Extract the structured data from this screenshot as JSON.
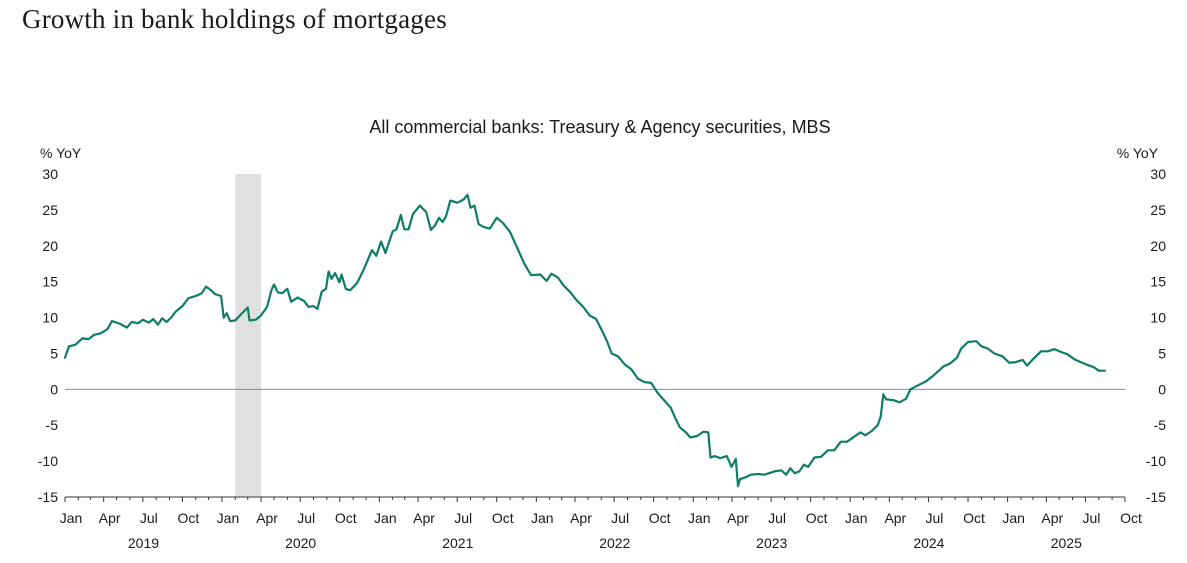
{
  "page_title": "Growth in bank holdings of mortgages",
  "colors": {
    "line": "#0e7c66",
    "recession_shade": "#e0e0e0",
    "zero_line": "#8c8c8c",
    "text": "#1a1a1a"
  },
  "chart_data": {
    "type": "line",
    "title": "All commercial banks:  Treasury & Agency securities, MBS",
    "ylabel_left": "% YoY",
    "ylabel_right": "% YoY",
    "ylim": [
      -15,
      30
    ],
    "yticks": [
      "30",
      "25",
      "20",
      "15",
      "10",
      "5",
      "0",
      "-5",
      "-10",
      "-15"
    ],
    "x_start": "2019-01",
    "x_end": "2025-10",
    "month_ticks": [
      "Jan",
      "Apr",
      "Jul",
      "Oct",
      "Jan",
      "Apr",
      "Jul",
      "Oct",
      "Jan",
      "Apr",
      "Jul",
      "Oct",
      "Jan",
      "Apr",
      "Jul",
      "Oct",
      "Jan",
      "Apr",
      "Jul",
      "Oct",
      "Jan",
      "Apr",
      "Jul",
      "Oct",
      "Jan",
      "Apr",
      "Jul",
      "Oct"
    ],
    "year_labels": [
      "2019",
      "2020",
      "2021",
      "2022",
      "2023",
      "2024",
      "2025"
    ],
    "recession_shading": [
      "2020-02",
      "2020-04"
    ],
    "grid": false,
    "legend": "none",
    "series": [
      {
        "values": [
          [
            "2019-01-01",
            4.4
          ],
          [
            "2019-01-10",
            6.0
          ],
          [
            "2019-01-25",
            6.2
          ],
          [
            "2019-02-10",
            7.1
          ],
          [
            "2019-02-25",
            7.0
          ],
          [
            "2019-03-10",
            7.6
          ],
          [
            "2019-03-25",
            7.8
          ],
          [
            "2019-04-10",
            8.4
          ],
          [
            "2019-04-20",
            9.5
          ],
          [
            "2019-05-10",
            9.1
          ],
          [
            "2019-05-25",
            8.6
          ],
          [
            "2019-06-05",
            9.4
          ],
          [
            "2019-06-20",
            9.2
          ],
          [
            "2019-07-01",
            9.7
          ],
          [
            "2019-07-15",
            9.3
          ],
          [
            "2019-07-25",
            9.8
          ],
          [
            "2019-08-05",
            9.0
          ],
          [
            "2019-08-15",
            9.9
          ],
          [
            "2019-08-25",
            9.4
          ],
          [
            "2019-09-05",
            10.0
          ],
          [
            "2019-09-15",
            10.8
          ],
          [
            "2019-10-01",
            11.6
          ],
          [
            "2019-10-15",
            12.7
          ],
          [
            "2019-11-01",
            13.0
          ],
          [
            "2019-11-15",
            13.4
          ],
          [
            "2019-11-25",
            14.3
          ],
          [
            "2019-12-05",
            13.9
          ],
          [
            "2019-12-15",
            13.3
          ],
          [
            "2019-12-30",
            13.0
          ],
          [
            "2020-01-05",
            10.0
          ],
          [
            "2020-01-12",
            10.6
          ],
          [
            "2020-01-20",
            9.5
          ],
          [
            "2020-02-01",
            9.6
          ],
          [
            "2020-02-15",
            10.5
          ],
          [
            "2020-03-01",
            11.4
          ],
          [
            "2020-03-05",
            9.6
          ],
          [
            "2020-03-20",
            9.7
          ],
          [
            "2020-04-01",
            10.3
          ],
          [
            "2020-04-15",
            11.5
          ],
          [
            "2020-04-25",
            13.8
          ],
          [
            "2020-05-01",
            14.6
          ],
          [
            "2020-05-10",
            13.5
          ],
          [
            "2020-05-20",
            13.4
          ],
          [
            "2020-06-01",
            14.0
          ],
          [
            "2020-06-10",
            12.2
          ],
          [
            "2020-06-25",
            12.8
          ],
          [
            "2020-07-10",
            12.3
          ],
          [
            "2020-07-20",
            11.5
          ],
          [
            "2020-08-01",
            11.6
          ],
          [
            "2020-08-10",
            11.2
          ],
          [
            "2020-08-20",
            13.6
          ],
          [
            "2020-08-30",
            14.0
          ],
          [
            "2020-09-05",
            16.4
          ],
          [
            "2020-09-12",
            15.4
          ],
          [
            "2020-09-20",
            16.2
          ],
          [
            "2020-09-30",
            14.9
          ],
          [
            "2020-10-05",
            16.0
          ],
          [
            "2020-10-15",
            14.0
          ],
          [
            "2020-10-25",
            13.8
          ],
          [
            "2020-11-10",
            14.8
          ],
          [
            "2020-11-25",
            16.6
          ],
          [
            "2020-12-05",
            18.0
          ],
          [
            "2020-12-15",
            19.4
          ],
          [
            "2020-12-25",
            18.6
          ],
          [
            "2021-01-05",
            20.6
          ],
          [
            "2021-01-15",
            19.0
          ],
          [
            "2021-02-01",
            22.0
          ],
          [
            "2021-02-10",
            22.3
          ],
          [
            "2021-02-20",
            24.3
          ],
          [
            "2021-02-28",
            22.3
          ],
          [
            "2021-03-10",
            22.3
          ],
          [
            "2021-03-20",
            24.4
          ],
          [
            "2021-04-05",
            25.6
          ],
          [
            "2021-04-20",
            24.7
          ],
          [
            "2021-05-01",
            22.2
          ],
          [
            "2021-05-10",
            22.8
          ],
          [
            "2021-05-20",
            23.9
          ],
          [
            "2021-05-28",
            23.3
          ],
          [
            "2021-06-05",
            24.1
          ],
          [
            "2021-06-15",
            26.3
          ],
          [
            "2021-07-01",
            26.0
          ],
          [
            "2021-07-15",
            26.4
          ],
          [
            "2021-07-25",
            27.1
          ],
          [
            "2021-08-01",
            25.3
          ],
          [
            "2021-08-10",
            25.6
          ],
          [
            "2021-08-20",
            23.0
          ],
          [
            "2021-09-01",
            22.6
          ],
          [
            "2021-09-15",
            22.4
          ],
          [
            "2021-10-01",
            23.9
          ],
          [
            "2021-10-15",
            23.2
          ],
          [
            "2021-11-01",
            21.9
          ],
          [
            "2021-11-20",
            19.4
          ],
          [
            "2021-12-05",
            17.4
          ],
          [
            "2021-12-20",
            15.9
          ],
          [
            "2022-01-10",
            16.0
          ],
          [
            "2022-01-25",
            15.1
          ],
          [
            "2022-02-05",
            16.1
          ],
          [
            "2022-02-20",
            15.6
          ],
          [
            "2022-03-05",
            14.5
          ],
          [
            "2022-03-20",
            13.6
          ],
          [
            "2022-04-05",
            12.4
          ],
          [
            "2022-04-20",
            11.5
          ],
          [
            "2022-05-05",
            10.3
          ],
          [
            "2022-05-20",
            9.8
          ],
          [
            "2022-06-05",
            7.9
          ],
          [
            "2022-06-15",
            6.6
          ],
          [
            "2022-06-25",
            5.0
          ],
          [
            "2022-07-10",
            4.6
          ],
          [
            "2022-07-25",
            3.5
          ],
          [
            "2022-08-10",
            2.8
          ],
          [
            "2022-08-25",
            1.5
          ],
          [
            "2022-09-10",
            1.0
          ],
          [
            "2022-09-25",
            0.9
          ],
          [
            "2022-10-10",
            -0.5
          ],
          [
            "2022-10-25",
            -1.5
          ],
          [
            "2022-11-10",
            -2.6
          ],
          [
            "2022-11-20",
            -4.0
          ],
          [
            "2022-12-01",
            -5.3
          ],
          [
            "2022-12-15",
            -6.0
          ],
          [
            "2022-12-25",
            -6.7
          ],
          [
            "2023-01-10",
            -6.5
          ],
          [
            "2023-01-25",
            -5.9
          ],
          [
            "2023-02-05",
            -6.0
          ],
          [
            "2023-02-10",
            -9.5
          ],
          [
            "2023-02-20",
            -9.3
          ],
          [
            "2023-03-05",
            -9.6
          ],
          [
            "2023-03-20",
            -9.3
          ],
          [
            "2023-03-31",
            -10.8
          ],
          [
            "2023-04-10",
            -9.7
          ],
          [
            "2023-04-15",
            -13.5
          ],
          [
            "2023-04-20",
            -12.5
          ],
          [
            "2023-05-01",
            -12.3
          ],
          [
            "2023-05-15",
            -11.9
          ],
          [
            "2023-06-01",
            -11.8
          ],
          [
            "2023-06-15",
            -11.9
          ],
          [
            "2023-07-01",
            -11.6
          ],
          [
            "2023-07-10",
            -11.4
          ],
          [
            "2023-07-25",
            -11.3
          ],
          [
            "2023-08-05",
            -11.9
          ],
          [
            "2023-08-15",
            -11.0
          ],
          [
            "2023-08-25",
            -11.7
          ],
          [
            "2023-09-05",
            -11.4
          ],
          [
            "2023-09-15",
            -10.5
          ],
          [
            "2023-09-25",
            -10.8
          ],
          [
            "2023-10-10",
            -9.5
          ],
          [
            "2023-10-25",
            -9.4
          ],
          [
            "2023-11-10",
            -8.5
          ],
          [
            "2023-11-25",
            -8.5
          ],
          [
            "2023-12-10",
            -7.3
          ],
          [
            "2023-12-25",
            -7.3
          ],
          [
            "2024-01-10",
            -6.6
          ],
          [
            "2024-01-25",
            -6.0
          ],
          [
            "2024-02-05",
            -6.4
          ],
          [
            "2024-02-20",
            -5.8
          ],
          [
            "2024-03-05",
            -5.0
          ],
          [
            "2024-03-12",
            -3.8
          ],
          [
            "2024-03-18",
            -0.7
          ],
          [
            "2024-03-25",
            -1.4
          ],
          [
            "2024-04-10",
            -1.5
          ],
          [
            "2024-04-25",
            -1.8
          ],
          [
            "2024-05-10",
            -1.3
          ],
          [
            "2024-05-20",
            0.0
          ],
          [
            "2024-06-05",
            0.5
          ],
          [
            "2024-06-25",
            1.1
          ],
          [
            "2024-07-10",
            1.8
          ],
          [
            "2024-07-25",
            2.6
          ],
          [
            "2024-08-05",
            3.2
          ],
          [
            "2024-08-20",
            3.6
          ],
          [
            "2024-09-05",
            4.4
          ],
          [
            "2024-09-15",
            5.7
          ],
          [
            "2024-10-01",
            6.6
          ],
          [
            "2024-10-20",
            6.7
          ],
          [
            "2024-11-01",
            6.0
          ],
          [
            "2024-11-15",
            5.7
          ],
          [
            "2024-12-01",
            5.0
          ],
          [
            "2024-12-20",
            4.6
          ],
          [
            "2025-01-05",
            3.7
          ],
          [
            "2025-01-20",
            3.8
          ],
          [
            "2025-02-05",
            4.1
          ],
          [
            "2025-02-15",
            3.3
          ],
          [
            "2025-03-01",
            4.2
          ],
          [
            "2025-03-20",
            5.3
          ],
          [
            "2025-04-05",
            5.3
          ],
          [
            "2025-04-20",
            5.6
          ],
          [
            "2025-05-05",
            5.2
          ],
          [
            "2025-05-20",
            4.9
          ],
          [
            "2025-06-05",
            4.2
          ],
          [
            "2025-06-20",
            3.8
          ],
          [
            "2025-07-05",
            3.4
          ],
          [
            "2025-07-20",
            3.1
          ],
          [
            "2025-08-01",
            2.6
          ],
          [
            "2025-08-15",
            2.6
          ]
        ]
      }
    ]
  }
}
